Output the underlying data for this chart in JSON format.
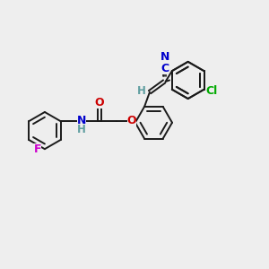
{
  "bg_color": "#eeeeee",
  "bond_color": "#1a1a1a",
  "N_color": "#0000cc",
  "O_color": "#cc0000",
  "F_color": "#cc00cc",
  "Cl_color": "#00aa00",
  "H_color": "#5f9ea0",
  "C_color": "#0000cc",
  "line_width": 1.4,
  "figsize": [
    3.0,
    3.0
  ],
  "dpi": 100,
  "xlim": [
    0,
    10
  ],
  "ylim": [
    0,
    10
  ]
}
